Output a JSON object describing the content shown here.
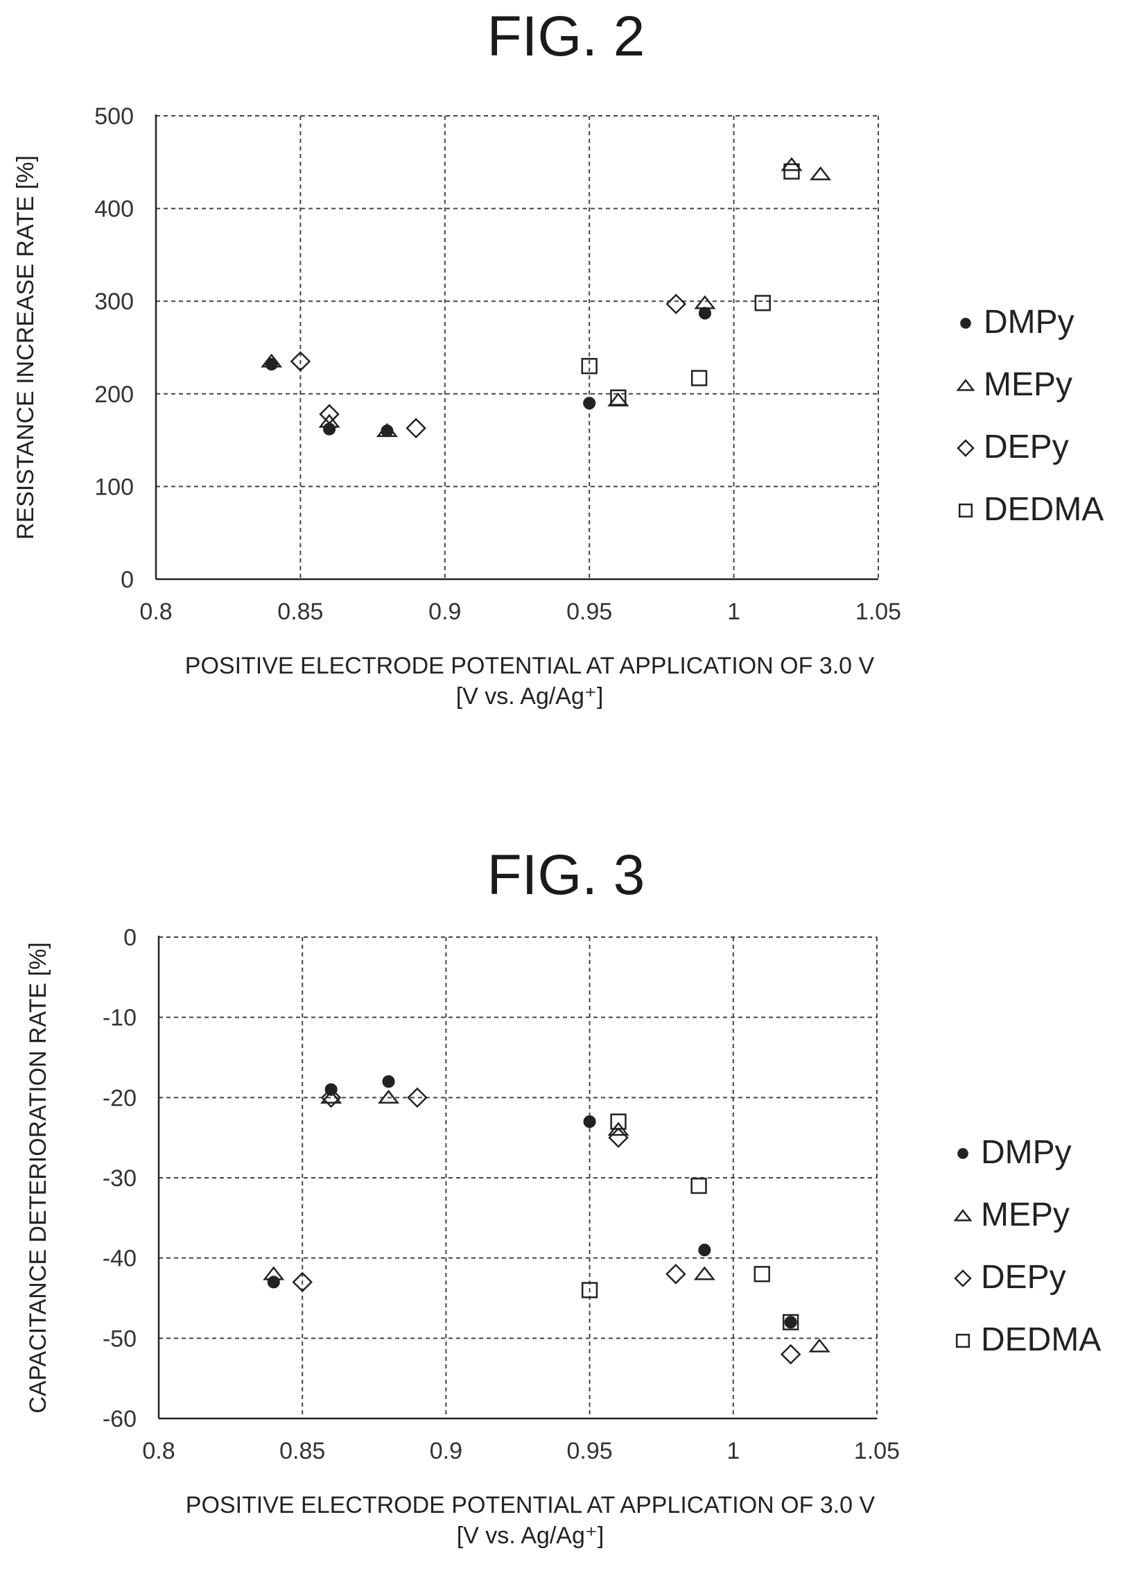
{
  "chart_data": [
    {
      "type": "scatter",
      "title": "FIG. 2",
      "xlabel": "POSITIVE ELECTRODE POTENTIAL AT APPLICATION OF 3.0 V",
      "xlabel_line2": "[V vs. Ag/Ag⁺]",
      "ylabel": "RESISTANCE INCREASE RATE [%]",
      "xlim": [
        0.8,
        1.05
      ],
      "ylim": [
        0,
        500
      ],
      "xticks": [
        "0.8",
        "0.85",
        "0.9",
        "0.95",
        "1",
        "1.05"
      ],
      "yticks": [
        "0",
        "100",
        "200",
        "300",
        "400",
        "500"
      ],
      "grid": true,
      "legend": "right",
      "series": [
        {
          "name": "DMPy",
          "marker": "circle-filled",
          "points": [
            [
              0.84,
              232
            ],
            [
              0.86,
              162
            ],
            [
              0.88,
              160
            ],
            [
              0.95,
              190
            ],
            [
              0.99,
              287
            ]
          ]
        },
        {
          "name": "MEPy",
          "marker": "triangle",
          "points": [
            [
              0.84,
              235
            ],
            [
              0.86,
              170
            ],
            [
              0.88,
              160
            ],
            [
              0.96,
              193
            ],
            [
              0.99,
              298
            ],
            [
              1.02,
              447
            ],
            [
              1.03,
              437
            ]
          ]
        },
        {
          "name": "DEPy",
          "marker": "diamond",
          "points": [
            [
              0.85,
              235
            ],
            [
              0.86,
              178
            ],
            [
              0.89,
              163
            ],
            [
              0.98,
              297
            ]
          ]
        },
        {
          "name": "DEDMA",
          "marker": "square",
          "points": [
            [
              0.95,
              230
            ],
            [
              0.96,
              196
            ],
            [
              0.988,
              217
            ],
            [
              1.01,
              298
            ],
            [
              1.02,
              440
            ]
          ]
        }
      ]
    },
    {
      "type": "scatter",
      "title": "FIG. 3",
      "xlabel": "POSITIVE ELECTRODE POTENTIAL AT APPLICATION OF 3.0 V",
      "xlabel_line2": "[V vs. Ag/Ag⁺]",
      "ylabel": "CAPACITANCE DETERIORATION RATE [%]",
      "xlim": [
        0.8,
        1.05
      ],
      "ylim": [
        -60,
        0
      ],
      "xticks": [
        "0.8",
        "0.85",
        "0.9",
        "0.95",
        "1",
        "1.05"
      ],
      "yticks": [
        "0",
        "-10",
        "-20",
        "-30",
        "-40",
        "-50",
        "-60"
      ],
      "grid": true,
      "legend": "right",
      "series": [
        {
          "name": "DMPy",
          "marker": "circle-filled",
          "points": [
            [
              0.84,
              -43
            ],
            [
              0.86,
              -19
            ],
            [
              0.88,
              -18
            ],
            [
              0.95,
              -23
            ],
            [
              0.99,
              -39
            ],
            [
              1.02,
              -48
            ]
          ]
        },
        {
          "name": "MEPy",
          "marker": "triangle",
          "points": [
            [
              0.84,
              -42
            ],
            [
              0.86,
              -20
            ],
            [
              0.88,
              -20
            ],
            [
              0.96,
              -24
            ],
            [
              0.99,
              -42
            ],
            [
              1.03,
              -51
            ]
          ]
        },
        {
          "name": "DEPy",
          "marker": "diamond",
          "points": [
            [
              0.85,
              -43
            ],
            [
              0.86,
              -20
            ],
            [
              0.89,
              -20
            ],
            [
              0.96,
              -25
            ],
            [
              0.98,
              -42
            ],
            [
              1.02,
              -52
            ]
          ]
        },
        {
          "name": "DEDMA",
          "marker": "square",
          "points": [
            [
              0.95,
              -44
            ],
            [
              0.96,
              -23
            ],
            [
              0.988,
              -31
            ],
            [
              1.01,
              -42
            ],
            [
              1.02,
              -48
            ]
          ]
        }
      ]
    }
  ]
}
